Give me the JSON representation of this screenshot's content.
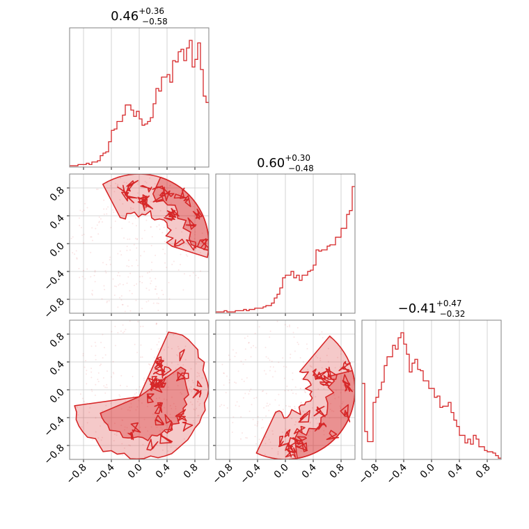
{
  "chart_data": {
    "type": "corner",
    "color": "#d62728",
    "parameters": [
      {
        "index": 0,
        "title": {
          "median": "0.46",
          "plus": "+0.36",
          "minus": "−0.58"
        },
        "range": [
          -1,
          1
        ],
        "hist_bin_edges_start": -1.0,
        "hist_bin_width": 0.04,
        "hist_counts": [
          1,
          1,
          1,
          2,
          2,
          2,
          3,
          2,
          4,
          4,
          5,
          9,
          11,
          12,
          20,
          29,
          30,
          36,
          36,
          41,
          49,
          49,
          45,
          40,
          44,
          38,
          33,
          34,
          36,
          39,
          50,
          62,
          60,
          71,
          71,
          73,
          67,
          84,
          83,
          91,
          93,
          84,
          94,
          100,
          79,
          85,
          98,
          77,
          56,
          51
        ]
      },
      {
        "index": 1,
        "title": {
          "median": "0.60",
          "plus": "+0.30",
          "minus": "−0.48"
        },
        "range": [
          -1,
          1
        ],
        "hist_bin_edges_start": -1.0,
        "hist_bin_width": 0.04,
        "hist_counts": [
          1,
          1,
          1,
          2,
          1,
          1,
          1,
          2,
          2,
          2,
          3,
          2,
          3,
          3,
          4,
          4,
          4,
          5,
          6,
          6,
          8,
          12,
          15,
          20,
          28,
          30,
          30,
          33,
          28,
          30,
          26,
          30,
          30,
          33,
          34,
          38,
          50,
          49,
          50,
          50,
          53,
          54,
          54,
          60,
          60,
          67,
          67,
          78,
          81,
          100
        ]
      },
      {
        "index": 2,
        "title": {
          "median": "−0.41",
          "plus": "+0.47",
          "minus": "−0.32"
        },
        "range": [
          -1,
          1
        ],
        "hist_bin_edges_start": -1.0,
        "hist_bin_width": 0.04,
        "hist_counts": [
          60,
          22,
          14,
          14,
          45,
          49,
          55,
          61,
          74,
          81,
          81,
          90,
          87,
          96,
          100,
          91,
          83,
          69,
          76,
          79,
          71,
          70,
          62,
          62,
          56,
          56,
          49,
          50,
          41,
          42,
          42,
          45,
          37,
          31,
          26,
          19,
          19,
          13,
          16,
          12,
          19,
          16,
          10,
          10,
          7,
          6,
          6,
          5,
          3,
          1
        ]
      }
    ],
    "tick_values": [
      -0.8,
      -0.4,
      0.0,
      0.4,
      0.8
    ],
    "tick_labels": [
      "−0.8",
      "−0.4",
      "0.0",
      "0.4",
      "0.8"
    ],
    "support": "unit disk",
    "contour_levels": 3,
    "grid": true,
    "legend": "none"
  }
}
